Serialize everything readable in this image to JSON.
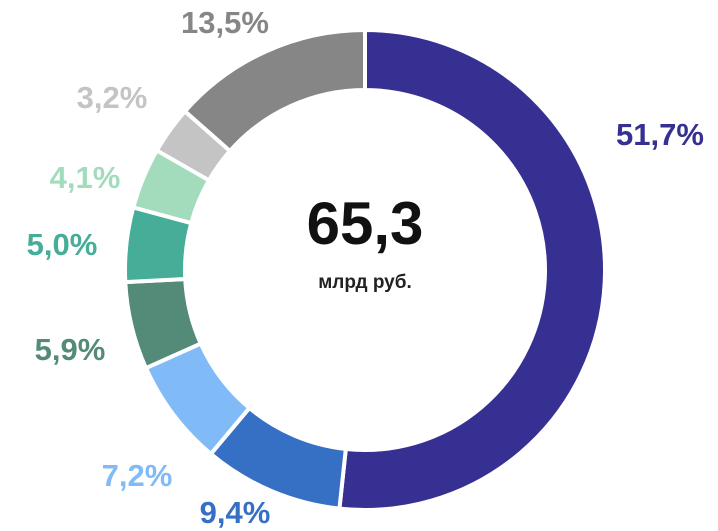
{
  "chart_data": {
    "type": "donut",
    "categories": [
      null,
      null,
      null,
      null,
      null,
      null,
      null,
      null
    ],
    "values": [
      51.7,
      9.4,
      7.2,
      5.9,
      5.0,
      4.1,
      3.2,
      13.5
    ],
    "value_labels": [
      "51,7%",
      "9,4%",
      "7,2%",
      "5,9%",
      "5,0%",
      "4,1%",
      "3,2%",
      "13,5%"
    ],
    "colors": [
      "#353092",
      "#3570c4",
      "#80bbf8",
      "#538b78",
      "#45ad98",
      "#a3dcbd",
      "#c4c4c4",
      "#868686"
    ],
    "total": {
      "value": 65.3,
      "label": "65,3"
    },
    "total_unit": "млрд руб."
  }
}
